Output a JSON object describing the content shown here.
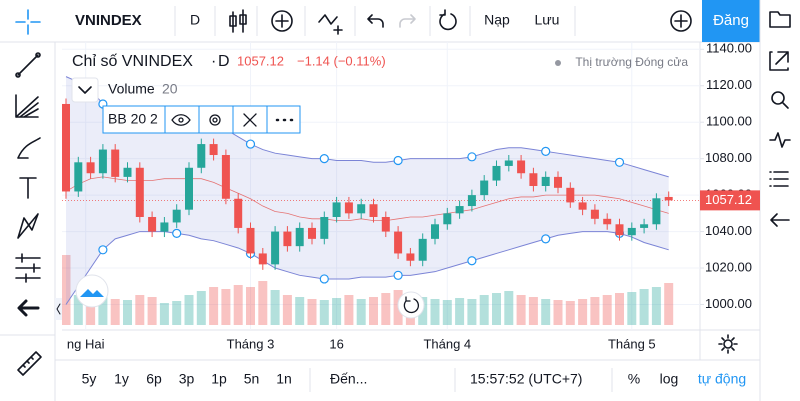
{
  "ui": {
    "symbol": "VNINDEX",
    "interval": "D",
    "load": "Nạp",
    "save": "Lưu",
    "publish": "Đăng",
    "ranges": [
      "5y",
      "1y",
      "6p",
      "3p",
      "1p",
      "5n",
      "1n"
    ],
    "goto": "Đến...",
    "clock": "15:57:52 (UTC+7)",
    "percent": "%",
    "log": "log",
    "auto": "tự động"
  },
  "chart_data": {
    "type": "candlestick",
    "title": "Chỉ số VNINDEX",
    "dot": "·",
    "interval": "D",
    "change_label": "−1.14 (−0.11%)",
    "market_status": "Thị trường Đóng cửa",
    "volume_label": "Volume",
    "volume_length": "20",
    "bb_label": "BB 20 2",
    "up_color": "#26a69a",
    "down_color": "#ef5350",
    "band_color": "#7b84d6",
    "middle_color": "#e57373",
    "ylim": [
      986,
      1144
    ],
    "yticks": [
      {
        "value": 1000,
        "label": "1000.00"
      },
      {
        "value": 1020,
        "label": "1020.00"
      },
      {
        "value": 1040,
        "label": "1040.00"
      },
      {
        "value": 1060,
        "label": "1060.00"
      },
      {
        "value": 1080,
        "label": "1080.00"
      },
      {
        "value": 1100,
        "label": "1100.00"
      },
      {
        "value": 1120,
        "label": "1120.00"
      },
      {
        "value": 1140,
        "label": "1140.00"
      }
    ],
    "xticks": [
      {
        "value": 1.6,
        "label": "ng Hai"
      },
      {
        "value": 15,
        "label": "Tháng 3"
      },
      {
        "value": 22,
        "label": "16"
      },
      {
        "value": 31,
        "label": "Tháng 4"
      },
      {
        "value": 46,
        "label": "Tháng 5"
      }
    ],
    "open": [
      1110,
      1062,
      1078,
      1072,
      1085,
      1070,
      1075,
      1048,
      1040,
      1045,
      1052,
      1075,
      1088,
      1082,
      1058,
      1042,
      1028,
      1022,
      1040,
      1032,
      1042,
      1036,
      1048,
      1056,
      1050,
      1055,
      1048,
      1040,
      1028,
      1024,
      1036,
      1044,
      1050,
      1054,
      1060,
      1068,
      1076,
      1079,
      1072,
      1065,
      1070,
      1064,
      1056,
      1052,
      1047,
      1044,
      1038,
      1042,
      1044,
      1059
    ],
    "high": [
      1113,
      1081,
      1081,
      1088,
      1088,
      1078,
      1078,
      1051,
      1048,
      1055,
      1078,
      1091,
      1091,
      1085,
      1061,
      1045,
      1031,
      1043,
      1043,
      1045,
      1045,
      1051,
      1059,
      1059,
      1058,
      1058,
      1051,
      1043,
      1031,
      1039,
      1047,
      1053,
      1057,
      1063,
      1071,
      1079,
      1082,
      1082,
      1075,
      1073,
      1073,
      1067,
      1059,
      1055,
      1050,
      1047,
      1045,
      1047,
      1061,
      1062
    ],
    "low": [
      1058,
      1059,
      1069,
      1069,
      1067,
      1067,
      1045,
      1037,
      1037,
      1042,
      1049,
      1072,
      1079,
      1055,
      1039,
      1025,
      1019,
      1019,
      1029,
      1029,
      1033,
      1033,
      1045,
      1047,
      1047,
      1045,
      1037,
      1025,
      1021,
      1021,
      1033,
      1041,
      1047,
      1051,
      1057,
      1065,
      1073,
      1069,
      1062,
      1062,
      1061,
      1053,
      1049,
      1044,
      1041,
      1035,
      1035,
      1039,
      1041,
      1054
    ],
    "close": [
      1062,
      1078,
      1072,
      1085,
      1070,
      1075,
      1048,
      1040,
      1045,
      1052,
      1075,
      1088,
      1082,
      1058,
      1042,
      1028,
      1022,
      1040,
      1032,
      1042,
      1036,
      1048,
      1056,
      1050,
      1055,
      1048,
      1040,
      1028,
      1024,
      1036,
      1044,
      1050,
      1054,
      1060,
      1068,
      1076,
      1079,
      1072,
      1065,
      1070,
      1064,
      1056,
      1052,
      1047,
      1044,
      1038,
      1042,
      1044,
      1058.26,
      1057.12
    ],
    "volume": [
      70,
      30,
      32,
      28,
      26,
      25,
      30,
      28,
      22,
      24,
      30,
      34,
      38,
      36,
      40,
      38,
      44,
      35,
      30,
      28,
      26,
      25,
      27,
      30,
      26,
      28,
      32,
      35,
      30,
      28,
      26,
      25,
      27,
      26,
      30,
      32,
      34,
      30,
      28,
      26,
      25,
      24,
      26,
      28,
      30,
      32,
      33,
      36,
      38,
      42
    ],
    "bb_upper": [
      1125,
      1122,
      1118,
      1110,
      1102,
      1098,
      1096,
      1097,
      1098,
      1099,
      1100,
      1102,
      1100,
      1096,
      1092,
      1088,
      1085,
      1083,
      1082,
      1081,
      1080,
      1080,
      1079,
      1079,
      1079,
      1078,
      1078,
      1079,
      1080,
      1080,
      1080,
      1080,
      1080,
      1081,
      1083,
      1085,
      1086,
      1086,
      1085,
      1084,
      1083,
      1082,
      1081,
      1080,
      1079,
      1078,
      1076,
      1074,
      1072,
      1070
    ],
    "bb_middle": [
      1062,
      1066,
      1069,
      1070,
      1069,
      1068,
      1068,
      1068,
      1069,
      1069,
      1069,
      1069,
      1067,
      1064,
      1061,
      1058,
      1054,
      1051,
      1050,
      1048,
      1047,
      1047,
      1046,
      1046,
      1047,
      1046,
      1046,
      1047,
      1048,
      1048,
      1049,
      1050,
      1051,
      1052,
      1054,
      1056,
      1058,
      1059,
      1059,
      1060,
      1060,
      1060,
      1060,
      1060,
      1059,
      1058,
      1056,
      1054,
      1052,
      1050
    ],
    "bb_lower": [
      1000,
      1010,
      1020,
      1030,
      1036,
      1038,
      1040,
      1040,
      1040,
      1039,
      1038,
      1036,
      1035,
      1033,
      1031,
      1028,
      1024,
      1020,
      1018,
      1016,
      1015,
      1014,
      1014,
      1014,
      1015,
      1015,
      1015,
      1016,
      1016,
      1017,
      1018,
      1020,
      1022,
      1024,
      1026,
      1028,
      1030,
      1032,
      1034,
      1036,
      1038,
      1039,
      1040,
      1040,
      1040,
      1039,
      1037,
      1034,
      1032,
      1030
    ]
  }
}
